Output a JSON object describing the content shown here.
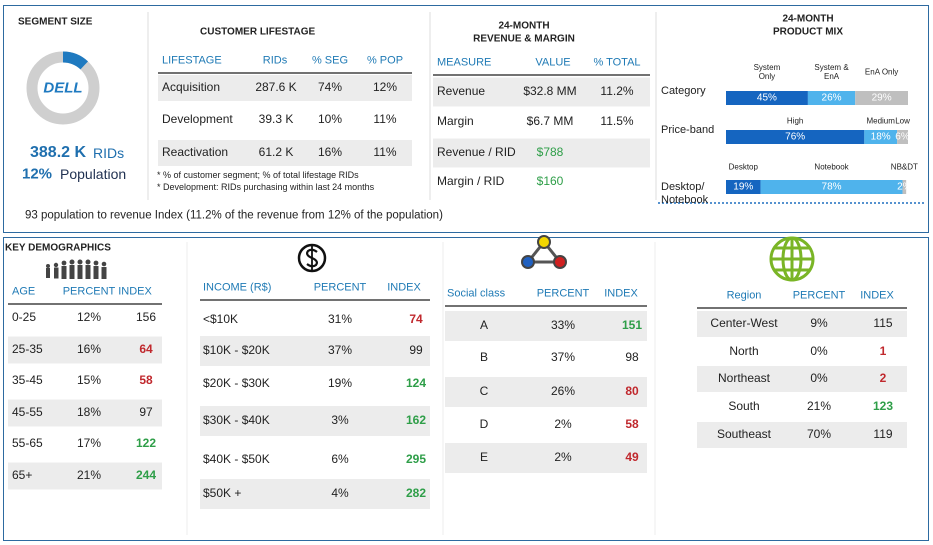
{
  "segment_size": {
    "title": "SEGMENT SIZE",
    "logo": "DELL",
    "population_share": 12,
    "rids": "388.2 K",
    "rids_unit": "RIDs",
    "population": "12%",
    "population_unit": "Population"
  },
  "customer_lifestage": {
    "title": "CUSTOMER LIFESTAGE",
    "columns": [
      "LIFESTAGE",
      "RIDs",
      "% SEG",
      "% POP"
    ],
    "rows": [
      [
        "Acquisition",
        "287.6 K",
        "74%",
        "12%"
      ],
      [
        "Development",
        "39.3 K",
        "10%",
        "11%"
      ],
      [
        "Reactivation",
        "61.2 K",
        "16%",
        "11%"
      ]
    ],
    "notes": [
      "* % of customer segment; % of total lifestage RIDs",
      "* Development: RIDs purchasing within last 24 months"
    ]
  },
  "revenue_margin": {
    "title": [
      "24-MONTH",
      "REVENUE & MARGIN"
    ],
    "columns": [
      "MEASURE",
      "VALUE",
      "% TOTAL"
    ],
    "rows": [
      [
        "Revenue",
        "$32.8 MM",
        "11.2%"
      ],
      [
        "Margin",
        "$6.7 MM",
        "11.5%"
      ],
      [
        "Revenue / RID",
        "$788"
      ],
      [
        "Margin / RID",
        "$160"
      ]
    ],
    "value_colors": [
      "#222222",
      "#222222",
      "#2e9e48",
      "#2e9e48"
    ]
  },
  "product_mix": {
    "title": [
      "24-MONTH",
      "PRODUCT MIX"
    ],
    "colors": [
      "#1565c0",
      "#4fb3ec",
      "#bfbfbf"
    ],
    "rows": [
      {
        "label": "Category",
        "segments": [
          {
            "name": "System Only",
            "value": 45,
            "value_label": "45%"
          },
          {
            "name": "System & EnA",
            "value": 26,
            "value_label": "26%"
          },
          {
            "name": "EnA Only",
            "value": 29,
            "value_label": "29%"
          }
        ]
      },
      {
        "label": "Price-band",
        "segments": [
          {
            "name": "High",
            "value": 76,
            "value_label": "76%"
          },
          {
            "name": "Medium",
            "value": 18,
            "value_label": "18%"
          },
          {
            "name": "Low",
            "value": 6,
            "value_label": "6%"
          }
        ]
      },
      {
        "label": "Desktop/ Notebook",
        "segments": [
          {
            "name": "Desktop",
            "value": 19,
            "value_label": "19%"
          },
          {
            "name": "Notebook",
            "value": 78,
            "value_label": "78%"
          },
          {
            "name": "NB&DT",
            "value": 2,
            "value_label": "2%"
          }
        ]
      }
    ]
  },
  "footnote": "93 population to revenue Index (11.2% of the revenue from 12% of the population)",
  "key_demographics": {
    "title": "KEY DEMOGRAPHICS",
    "columns": [
      "AGE",
      "PERCENT",
      "INDEX"
    ],
    "rows": [
      [
        "0-25",
        "12%",
        156
      ],
      [
        "25-35",
        "16%",
        64
      ],
      [
        "35-45",
        "15%",
        58
      ],
      [
        "45-55",
        "18%",
        97
      ],
      [
        "55-65",
        "17%",
        122
      ],
      [
        "65+",
        "21%",
        244
      ]
    ],
    "index_colors": [
      "#222222",
      "#c0282d",
      "#c0282d",
      "#222222",
      "#2e9e48",
      "#2e9e48"
    ]
  },
  "income": {
    "columns": [
      "INCOME (R$)",
      "PERCENT",
      "INDEX"
    ],
    "rows": [
      [
        "<$10K",
        "31%",
        74
      ],
      [
        "$10K - $20K",
        "37%",
        99
      ],
      [
        "$20K - $30K",
        "19%",
        124
      ],
      [
        "$30K - $40K",
        "3%",
        162
      ],
      [
        "$40K - $50K",
        "6%",
        295
      ],
      [
        "$50K +",
        "4%",
        282
      ]
    ],
    "index_colors": [
      "#c0282d",
      "#222222",
      "#2e9e48",
      "#2e9e48",
      "#2e9e48",
      "#2e9e48"
    ]
  },
  "social_class": {
    "columns": [
      "Social class",
      "PERCENT",
      "INDEX"
    ],
    "rows": [
      [
        "A",
        "33%",
        151
      ],
      [
        "B",
        "37%",
        98
      ],
      [
        "C",
        "26%",
        80
      ],
      [
        "D",
        "2%",
        58
      ],
      [
        "E",
        "2%",
        49
      ]
    ],
    "index_colors": [
      "#2e9e48",
      "#222222",
      "#c0282d",
      "#c0282d",
      "#c0282d"
    ]
  },
  "region": {
    "columns": [
      "Region",
      "PERCENT",
      "INDEX"
    ],
    "rows": [
      [
        "Center-West",
        "9%",
        115
      ],
      [
        "North",
        "0%",
        1
      ],
      [
        "Northeast",
        "0%",
        2
      ],
      [
        "South",
        "21%",
        123
      ],
      [
        "Southeast",
        "70%",
        119
      ]
    ],
    "index_colors": [
      "#222222",
      "#c0282d",
      "#c0282d",
      "#2e9e48",
      "#222222"
    ]
  }
}
